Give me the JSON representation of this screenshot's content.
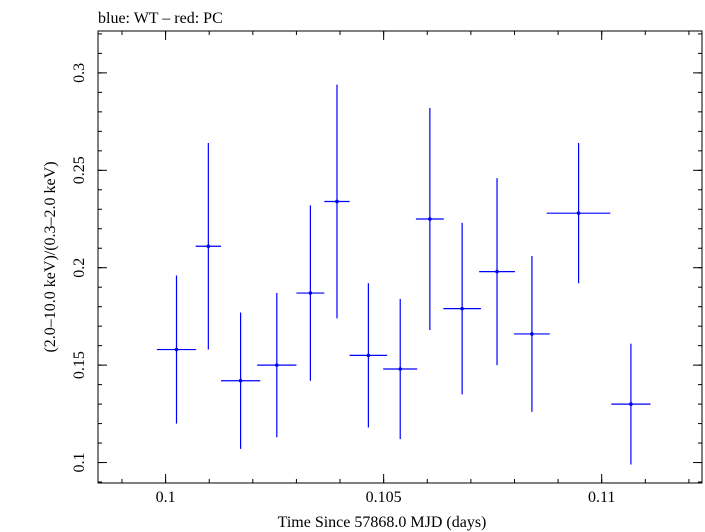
{
  "chart_data": {
    "type": "scatter",
    "title": "blue: WT – red: PC",
    "xlabel": "Time Since 57868.0 MJD (days)",
    "ylabel": "(2.0–10.0 keV)/(0.3–2.0 keV)",
    "xlim": [
      0.09845,
      0.1123
    ],
    "ylim": [
      0.0895,
      0.3215
    ],
    "x_ticks": [
      0.1,
      0.105,
      0.11
    ],
    "x_tick_labels": [
      "0.1",
      "0.105",
      "0.11"
    ],
    "y_ticks": [
      0.1,
      0.15,
      0.2,
      0.25,
      0.3
    ],
    "y_tick_labels": [
      "0.1",
      "0.15",
      "0.2",
      "0.25",
      "0.3"
    ],
    "grid": false,
    "series": [
      {
        "color": "#0000ff",
        "points": [
          {
            "x": 0.10025,
            "xerr": 0.00045,
            "y": 0.158,
            "yerr": 0.038
          },
          {
            "x": 0.10098,
            "xerr": 0.00029,
            "y": 0.211,
            "yerr": 0.053
          },
          {
            "x": 0.10172,
            "xerr": 0.00045,
            "y": 0.142,
            "yerr": 0.035
          },
          {
            "x": 0.10255,
            "xerr": 0.00045,
            "y": 0.15,
            "yerr": 0.037
          },
          {
            "x": 0.10332,
            "xerr": 0.00032,
            "y": 0.187,
            "yerr": 0.045
          },
          {
            "x": 0.10393,
            "xerr": 0.00029,
            "y": 0.234,
            "yerr": 0.06
          },
          {
            "x": 0.10465,
            "xerr": 0.00043,
            "y": 0.155,
            "yerr": 0.037
          },
          {
            "x": 0.10538,
            "xerr": 0.00039,
            "y": 0.148,
            "yerr": 0.036
          },
          {
            "x": 0.10606,
            "xerr": 0.00032,
            "y": 0.225,
            "yerr": 0.057
          },
          {
            "x": 0.1068,
            "xerr": 0.00043,
            "y": 0.179,
            "yerr": 0.044
          },
          {
            "x": 0.1076,
            "xerr": 0.00041,
            "y": 0.198,
            "yerr": 0.048
          },
          {
            "x": 0.1084,
            "xerr": 0.00041,
            "y": 0.166,
            "yerr": 0.04
          },
          {
            "x": 0.10947,
            "xerr": 0.00073,
            "y": 0.228,
            "yerr": 0.036
          },
          {
            "x": 0.11067,
            "xerr": 0.00045,
            "y": 0.13,
            "yerr": 0.031
          }
        ]
      }
    ]
  }
}
